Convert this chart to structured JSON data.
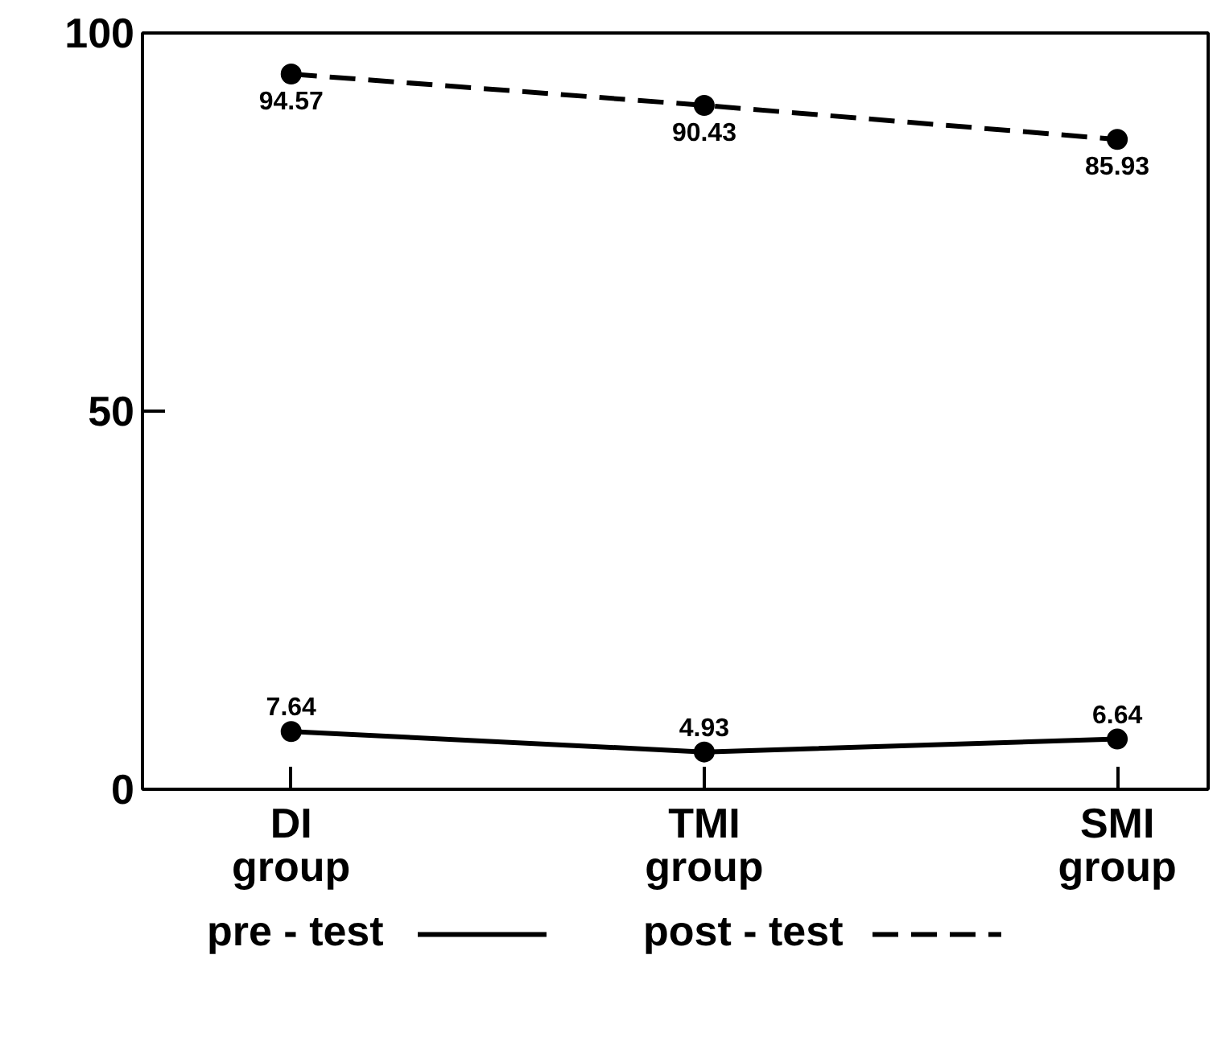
{
  "chart_data": {
    "type": "line",
    "categories": [
      "DI\ngroup",
      "TMI\ngroup",
      "SMI\ngroup"
    ],
    "series": [
      {
        "name": "pre - test",
        "color": "#000000",
        "values": [
          7.64,
          4.93,
          6.64
        ],
        "line_style": "solid"
      },
      {
        "name": "post - test",
        "color": "#000000",
        "values": [
          94.57,
          90.43,
          85.93
        ],
        "line_style": "dashed"
      }
    ],
    "ylim": [
      0,
      100
    ],
    "yticks": [
      0,
      50,
      100
    ],
    "grid": false,
    "legend": "bottom",
    "marker": "circle",
    "data_labels": true
  }
}
